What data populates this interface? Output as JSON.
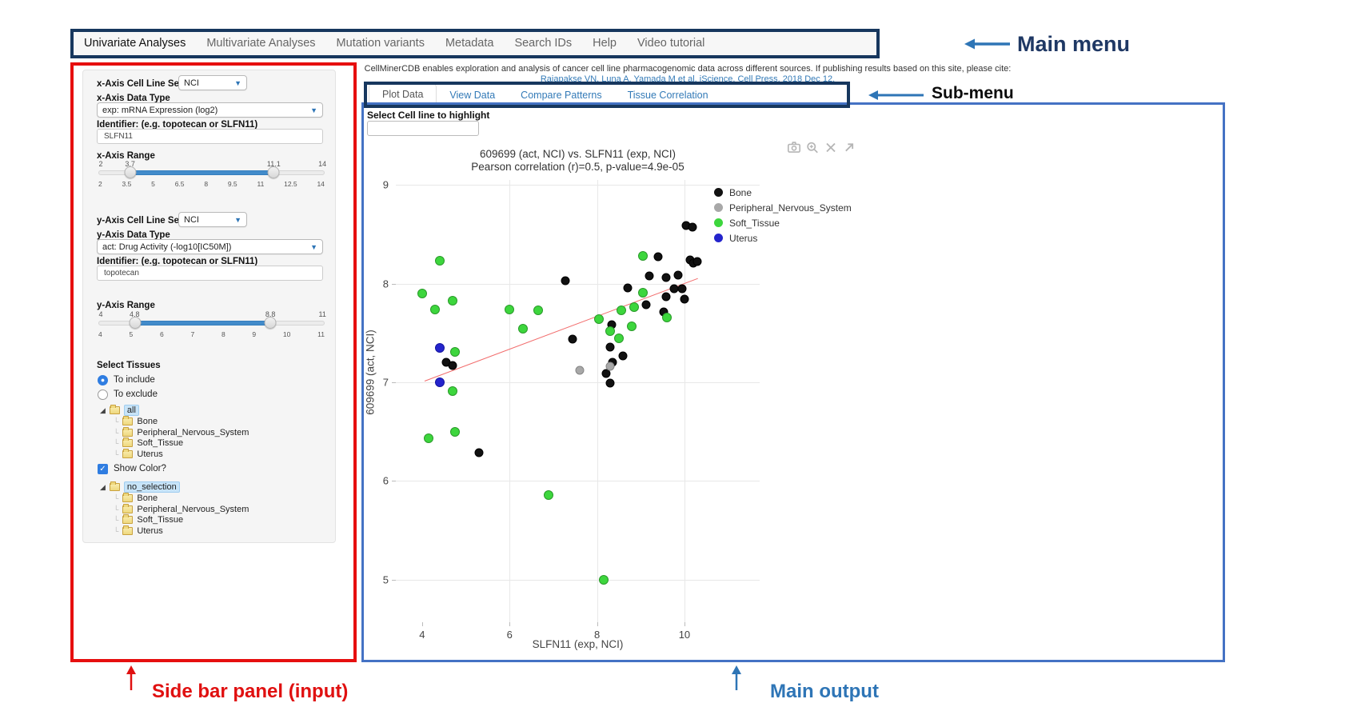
{
  "annotations": {
    "main_menu": "Main menu",
    "sub_menu": "Sub-menu",
    "side_bar": "Side bar panel (input)",
    "main_output": "Main output"
  },
  "main_menu": {
    "items": [
      {
        "label": "Univariate Analyses",
        "active": true
      },
      {
        "label": "Multivariate Analyses",
        "active": false
      },
      {
        "label": "Mutation variants",
        "active": false
      },
      {
        "label": "Metadata",
        "active": false
      },
      {
        "label": "Search IDs",
        "active": false
      },
      {
        "label": "Help",
        "active": false
      },
      {
        "label": "Video tutorial",
        "active": false
      }
    ]
  },
  "citation": {
    "line1": "CellMinerCDB enables exploration and analysis of cancer cell line pharmacogenomic data across different sources. If publishing results based on this site, please cite:",
    "link": "Rajapakse VN, Luna A, Yamada M et al. iScience, Cell Press, 2018 Dec 12."
  },
  "sub_menu": {
    "tabs": [
      {
        "label": "Plot Data",
        "active": true
      },
      {
        "label": "View Data",
        "active": false
      },
      {
        "label": "Compare Patterns",
        "active": false
      },
      {
        "label": "Tissue Correlation",
        "active": false
      }
    ]
  },
  "highlight": {
    "label": "Select Cell line to highlight",
    "value": ""
  },
  "sidebar": {
    "x_axis": {
      "cell_line_set_label": "x-Axis Cell Line Set",
      "cell_line_set_value": "NCI",
      "data_type_label": "x-Axis Data Type",
      "data_type_value": "exp: mRNA Expression (log2)",
      "identifier_label": "Identifier: (e.g. topotecan or SLFN11)",
      "identifier_value": "SLFN11",
      "range_label": "x-Axis Range",
      "range": {
        "min": "2",
        "max": "14",
        "low": "3.7",
        "high": "11.1",
        "ticks": [
          "2",
          "3.5",
          "5",
          "6.5",
          "8",
          "9.5",
          "11",
          "12.5",
          "14"
        ]
      }
    },
    "y_axis": {
      "cell_line_set_label": "y-Axis Cell Line Set",
      "cell_line_set_value": "NCI",
      "data_type_label": "y-Axis Data Type",
      "data_type_value": "act: Drug Activity (-log10[IC50M])",
      "identifier_label": "Identifier: (e.g. topotecan or SLFN11)",
      "identifier_value": "topotecan",
      "range_label": "y-Axis Range",
      "range": {
        "min": "4",
        "max": "11",
        "low": "4.8",
        "high": "8.8",
        "ticks": [
          "4",
          "5",
          "6",
          "7",
          "8",
          "9",
          "10",
          "11"
        ]
      }
    },
    "tissues": {
      "label": "Select Tissues",
      "include_label": "To include",
      "exclude_label": "To exclude",
      "include_selected": true,
      "show_color_label": "Show Color?",
      "show_color_checked": true,
      "tree_all": {
        "root": "all",
        "children": [
          "Bone",
          "Peripheral_Nervous_System",
          "Soft_Tissue",
          "Uterus"
        ]
      },
      "tree_colors": {
        "root": "no_selection",
        "children": [
          "Bone",
          "Peripheral_Nervous_System",
          "Soft_Tissue",
          "Uterus"
        ]
      }
    }
  },
  "plot": {
    "title": "609699 (act, NCI) vs. SLFN11 (exp, NCI)",
    "subtitle": "Pearson correlation (r)=0.5, p-value=4.9e-05",
    "x_title": "SLFN11 (exp, NCI)",
    "y_title": "609699 (act, NCI)"
  },
  "chart_data": {
    "type": "scatter",
    "title": "609699 (act, NCI) vs. SLFN11 (exp, NCI)",
    "subtitle": "Pearson correlation (r)=0.5, p-value=4.9e-05",
    "xlabel": "SLFN11 (exp, NCI)",
    "ylabel": "609699 (act, NCI)",
    "xlim": [
      3.4,
      11.72
    ],
    "ylim": [
      4.57,
      9.05
    ],
    "x_ticks": [
      4,
      6,
      8,
      10
    ],
    "y_ticks": [
      9,
      8,
      7,
      6,
      5
    ],
    "x_grid": [
      6,
      8,
      10
    ],
    "y_grid": [
      9,
      8,
      7,
      6,
      5
    ],
    "grid": true,
    "legend_position": "top-right-inside",
    "series": [
      {
        "name": "Bone",
        "color": "#111111",
        "edge": "#000000",
        "points": [
          [
            7.27,
            8.03
          ],
          [
            4.56,
            7.2
          ],
          [
            4.7,
            7.17
          ],
          [
            5.3,
            6.29
          ],
          [
            7.45,
            7.44
          ],
          [
            8.2,
            7.09
          ],
          [
            8.3,
            6.99
          ],
          [
            8.3,
            7.36
          ],
          [
            8.6,
            7.27
          ],
          [
            8.35,
            7.2
          ],
          [
            8.33,
            7.58
          ],
          [
            8.7,
            7.96
          ],
          [
            9.12,
            7.79
          ],
          [
            9.2,
            8.08
          ],
          [
            9.4,
            8.27
          ],
          [
            9.52,
            7.71
          ],
          [
            9.58,
            8.06
          ],
          [
            9.58,
            7.87
          ],
          [
            9.76,
            7.95
          ],
          [
            9.85,
            8.09
          ],
          [
            9.94,
            7.95
          ],
          [
            10.0,
            7.84
          ],
          [
            10.04,
            8.59
          ],
          [
            10.18,
            8.57
          ],
          [
            10.12,
            8.24
          ],
          [
            10.21,
            8.21
          ],
          [
            10.3,
            8.22
          ]
        ]
      },
      {
        "name": "Peripheral_Nervous_System",
        "color": "#a8a8a8",
        "edge": "#858585",
        "points": [
          [
            7.6,
            7.12
          ],
          [
            8.3,
            7.16
          ]
        ]
      },
      {
        "name": "Soft_Tissue",
        "color": "#3dd63d",
        "edge": "#2a9a2a",
        "points": [
          [
            4.0,
            7.9
          ],
          [
            4.15,
            6.43
          ],
          [
            4.3,
            7.74
          ],
          [
            4.4,
            8.23
          ],
          [
            4.7,
            7.83
          ],
          [
            4.7,
            6.91
          ],
          [
            4.75,
            7.31
          ],
          [
            4.75,
            6.5
          ],
          [
            6.0,
            7.74
          ],
          [
            6.3,
            7.54
          ],
          [
            6.65,
            7.73
          ],
          [
            6.9,
            5.86
          ],
          [
            8.05,
            7.64
          ],
          [
            8.15,
            5.0
          ],
          [
            8.3,
            7.52
          ],
          [
            8.5,
            7.45
          ],
          [
            8.55,
            7.73
          ],
          [
            8.8,
            7.57
          ],
          [
            8.85,
            7.76
          ],
          [
            9.05,
            7.91
          ],
          [
            9.05,
            8.28
          ],
          [
            9.6,
            7.66
          ]
        ]
      },
      {
        "name": "Uterus",
        "color": "#2424cc",
        "edge": "#1515a0",
        "points": [
          [
            4.4,
            7.35
          ],
          [
            4.4,
            7.0
          ]
        ]
      }
    ],
    "trendline": {
      "color": "#f26d6d",
      "x1": 4.05,
      "y1": 7.02,
      "x2": 10.3,
      "y2": 8.06
    }
  }
}
